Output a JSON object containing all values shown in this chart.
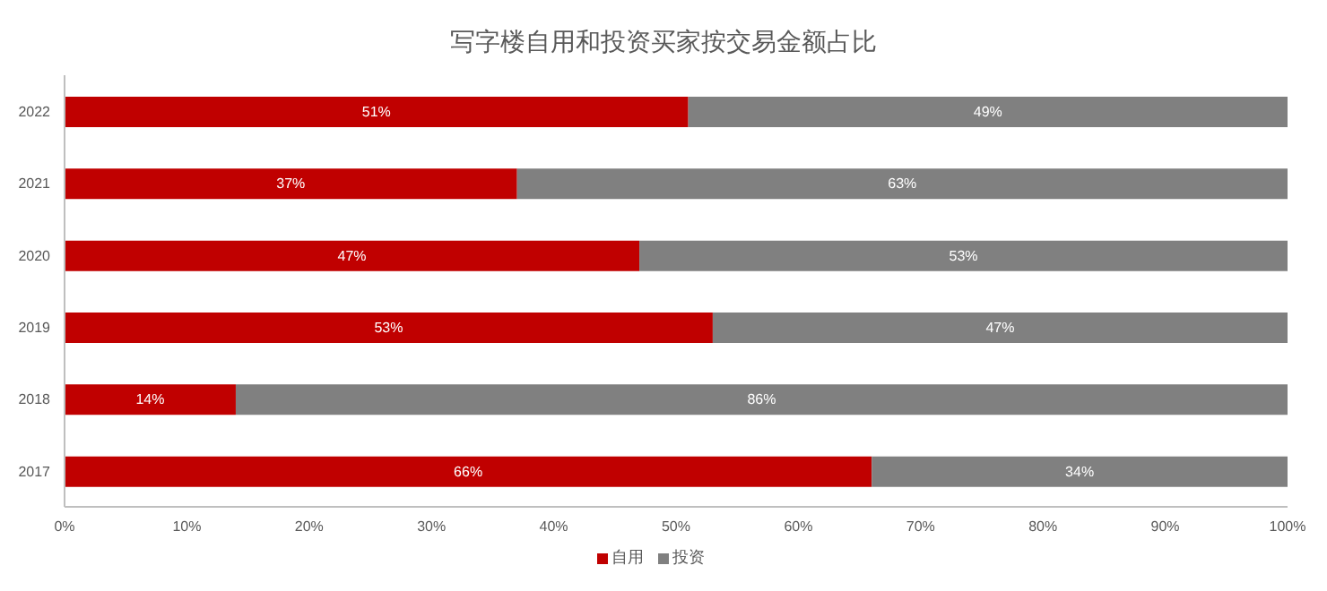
{
  "chart_data": {
    "type": "bar",
    "orientation": "horizontal",
    "stacked": true,
    "title": "写字楼自用和投资买家按交易金额占比",
    "categories": [
      "2022",
      "2021",
      "2020",
      "2019",
      "2018",
      "2017"
    ],
    "series": [
      {
        "name": "自用",
        "color": "#c00000",
        "values": [
          51,
          37,
          47,
          53,
          14,
          66
        ],
        "value_labels": [
          "51%",
          "37%",
          "47%",
          "53%",
          "14%",
          "66%"
        ]
      },
      {
        "name": "投资",
        "color": "#808080",
        "values": [
          49,
          63,
          53,
          47,
          86,
          34
        ],
        "value_labels": [
          "49%",
          "63%",
          "53%",
          "47%",
          "86%",
          "34%"
        ]
      }
    ],
    "xlim": [
      0,
      100
    ],
    "xticks": [
      {
        "value": 0,
        "label": "0%"
      },
      {
        "value": 10,
        "label": "10%"
      },
      {
        "value": 20,
        "label": "20%"
      },
      {
        "value": 30,
        "label": "30%"
      },
      {
        "value": 40,
        "label": "40%"
      },
      {
        "value": 50,
        "label": "50%"
      },
      {
        "value": 60,
        "label": "60%"
      },
      {
        "value": 70,
        "label": "70%"
      },
      {
        "value": 80,
        "label": "80%"
      },
      {
        "value": 90,
        "label": "90%"
      },
      {
        "value": 100,
        "label": "100%"
      }
    ],
    "grid": false,
    "legend": "bottom"
  }
}
